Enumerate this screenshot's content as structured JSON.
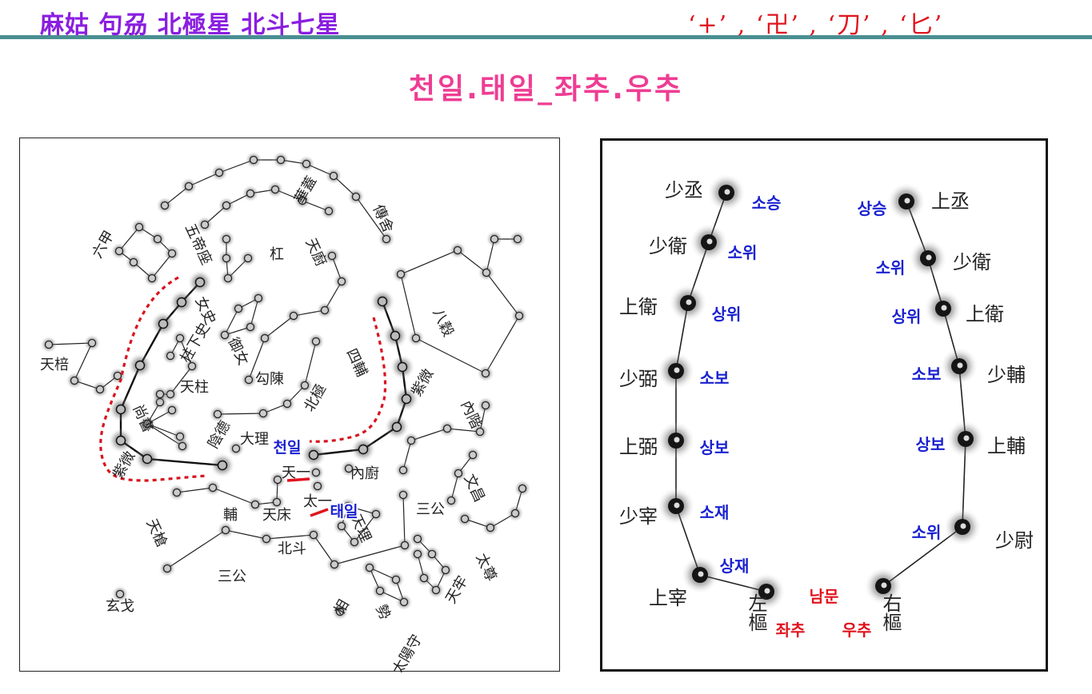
{
  "header": {
    "title": "麻姑 句刕 北極星 北斗七星",
    "symbols": "‘+’ , ‘卍’ , ‘刀’ , ‘匕’"
  },
  "subtitle": "천일.태일_좌추.우추",
  "colors": {
    "title": "#8a1ee0",
    "symbols": "#e0141e",
    "rule": "#4a8f93",
    "subtitle": "#ee3d93",
    "annotation_blue": "#1a22d0",
    "annotation_red": "#e0141e"
  },
  "left_chart": {
    "labels": [
      "傳舍",
      "華蓋",
      "五帝座",
      "杠",
      "天廚",
      "六甲",
      "女史",
      "柱下史",
      "御女",
      "天柱",
      "勾陳",
      "北極",
      "四輔",
      "紫微",
      "八穀",
      "天棓",
      "尚書",
      "陰德",
      "大理",
      "紫微",
      "內階",
      "天一",
      "太一",
      "內廚",
      "天床",
      "輔",
      "天槍",
      "北斗",
      "天理",
      "三公",
      "文昌",
      "三公",
      "玄戈",
      "相",
      "勢",
      "天牢",
      "太尊",
      "太陽守"
    ],
    "annotations": [
      "천일",
      "태일"
    ]
  },
  "right_chart": {
    "left_wall": [
      {
        "hanja": "少丞",
        "hangul": "소승"
      },
      {
        "hanja": "少衛",
        "hangul": "소위"
      },
      {
        "hanja": "上衛",
        "hangul": "상위"
      },
      {
        "hanja": "少弼",
        "hangul": "소보"
      },
      {
        "hanja": "上弼",
        "hangul": "상보"
      },
      {
        "hanja": "少宰",
        "hangul": "소재"
      },
      {
        "hanja": "上宰",
        "hangul": "상재"
      },
      {
        "hanja": "左樞",
        "hangul": "좌추"
      }
    ],
    "right_wall": [
      {
        "hanja": "上丞",
        "hangul": "상승"
      },
      {
        "hanja": "少衛",
        "hangul": "소위"
      },
      {
        "hanja": "上衛",
        "hangul": "상위"
      },
      {
        "hanja": "少輔",
        "hangul": "소보"
      },
      {
        "hanja": "上輔",
        "hangul": "상보"
      },
      {
        "hanja": "少尉",
        "hangul": "소위"
      },
      {
        "hanja": "右樞",
        "hangul": "우추"
      }
    ],
    "gate": "남문"
  }
}
